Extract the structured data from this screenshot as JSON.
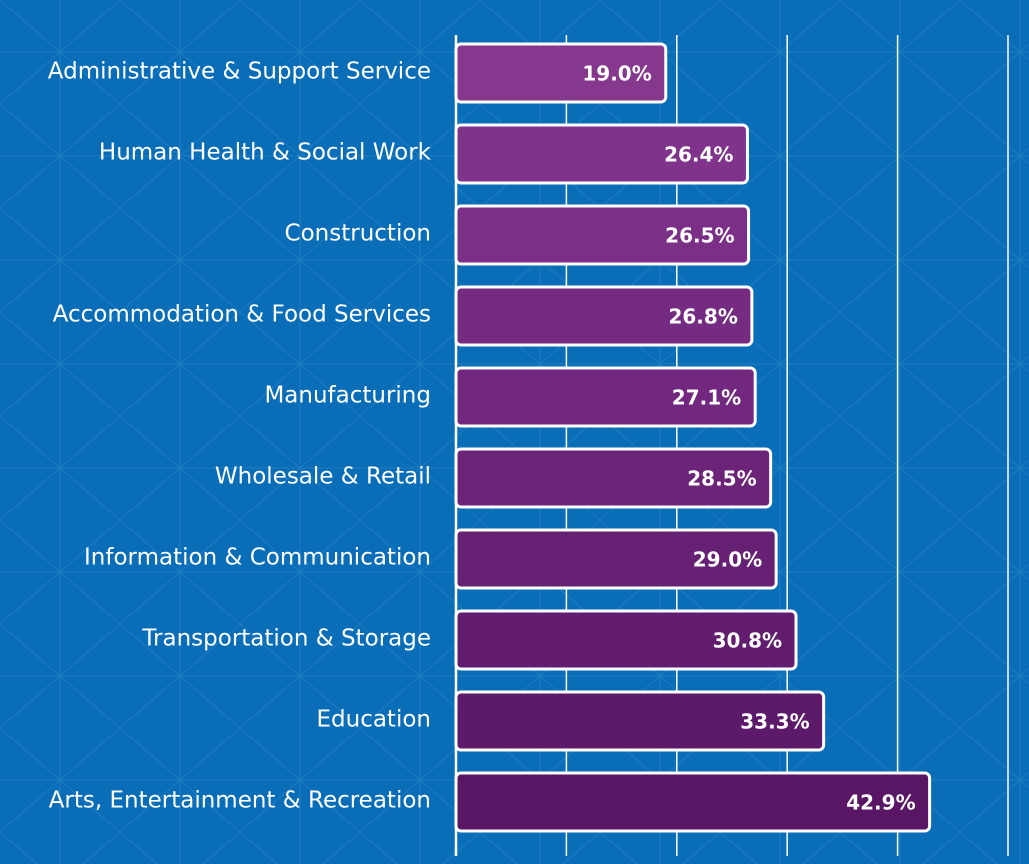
{
  "chart_data": {
    "type": "bar",
    "orientation": "horizontal",
    "categories": [
      "Administrative & Support Service",
      "Human Health & Social Work",
      "Construction",
      "Accommodation & Food Services",
      "Manufacturing",
      "Wholesale & Retail",
      "Information & Communication",
      "Transportation & Storage",
      "Education",
      "Arts, Entertainment & Recreation"
    ],
    "values": [
      19.0,
      26.4,
      26.5,
      26.8,
      27.1,
      28.5,
      29.0,
      30.8,
      33.3,
      42.9
    ],
    "value_labels": [
      "19.0%",
      "26.4%",
      "26.5%",
      "26.8%",
      "27.1%",
      "28.5%",
      "29.0%",
      "30.8%",
      "33.3%",
      "42.9%"
    ],
    "colors": [
      "#86388f",
      "#80338b",
      "#7b2f87",
      "#762b82",
      "#71287e",
      "#6c2479",
      "#672174",
      "#621d6f",
      "#5d1a6a",
      "#581665"
    ],
    "xlim": [
      0,
      50
    ],
    "xticks": [
      0,
      10,
      20,
      30,
      40,
      50
    ],
    "grid": true
  }
}
